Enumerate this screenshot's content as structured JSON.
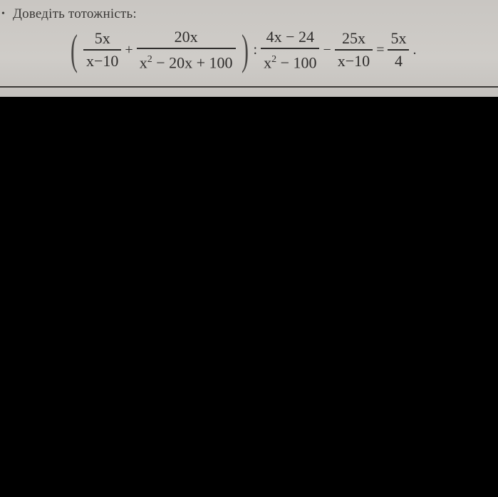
{
  "title": "Доведіть тотожність:",
  "formula": {
    "open_paren": "(",
    "f1": {
      "num": "5x",
      "den": "x−10"
    },
    "plus": "+",
    "f2": {
      "num": "20x",
      "den_base": "x",
      "den_exp": "2",
      "den_rest": " − 20x + 100"
    },
    "close_paren": ")",
    "divide": ":",
    "f3": {
      "num": "4x − 24",
      "den_base": "x",
      "den_exp": "2",
      "den_rest": " − 100"
    },
    "minus": "−",
    "f4": {
      "num": "25x",
      "den": "x−10"
    },
    "equals": "=",
    "f5": {
      "num": "5x",
      "den": "4"
    },
    "end": "."
  }
}
